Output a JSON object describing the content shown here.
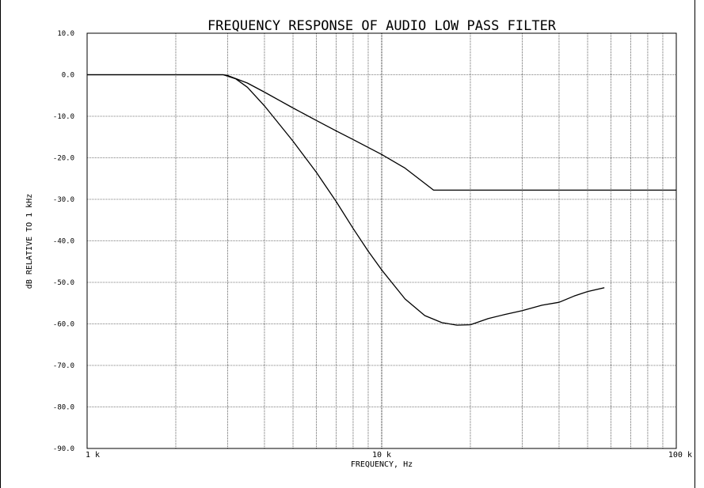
{
  "chart_data": {
    "type": "line",
    "title": "FREQUENCY RESPONSE OF AUDIO LOW PASS FILTER",
    "xlabel": "FREQUENCY, Hz",
    "ylabel": "dB RELATIVE TO 1 kHz",
    "x_scale": "log",
    "xlim": [
      1000,
      100000
    ],
    "ylim": [
      -90,
      10
    ],
    "grid": true,
    "x_ticks": [
      {
        "value": 1000,
        "label": "1 k"
      },
      {
        "value": 10000,
        "label": "10 k"
      },
      {
        "value": 100000,
        "label": "100 k"
      }
    ],
    "y_ticks": [
      {
        "value": 10,
        "label": "10.0"
      },
      {
        "value": 0,
        "label": "0.0"
      },
      {
        "value": -10,
        "label": "-10.0"
      },
      {
        "value": -20,
        "label": "-20.0"
      },
      {
        "value": -30,
        "label": "-30.0"
      },
      {
        "value": -40,
        "label": "-40.0"
      },
      {
        "value": -50,
        "label": "-50.0"
      },
      {
        "value": -60,
        "label": "-60.0"
      },
      {
        "value": -70,
        "label": "-70.0"
      },
      {
        "value": -80,
        "label": "-80.0"
      },
      {
        "value": -90,
        "label": "-90.0"
      }
    ],
    "series": [
      {
        "points": [
          [
            1000,
            0
          ],
          [
            2900,
            0
          ],
          [
            3000,
            -0.2
          ],
          [
            3500,
            -2
          ],
          [
            4000,
            -4.2
          ],
          [
            5000,
            -8
          ],
          [
            6000,
            -11
          ],
          [
            7000,
            -13.5
          ],
          [
            8000,
            -15.6
          ],
          [
            10000,
            -19.2
          ],
          [
            12000,
            -22.5
          ],
          [
            15000,
            -27.8
          ],
          [
            20000,
            -27.8
          ],
          [
            50000,
            -27.8
          ],
          [
            100000,
            -27.8
          ]
        ]
      },
      {
        "points": [
          [
            1000,
            0
          ],
          [
            2900,
            0
          ],
          [
            3200,
            -1
          ],
          [
            3500,
            -3
          ],
          [
            4000,
            -7.5
          ],
          [
            5000,
            -16
          ],
          [
            6000,
            -23.5
          ],
          [
            7000,
            -30.5
          ],
          [
            8000,
            -37
          ],
          [
            9000,
            -42.5
          ],
          [
            10000,
            -47
          ],
          [
            12000,
            -54
          ],
          [
            14000,
            -58
          ],
          [
            16000,
            -59.7
          ],
          [
            18000,
            -60.3
          ],
          [
            20000,
            -60.2
          ],
          [
            23000,
            -58.7
          ],
          [
            26000,
            -57.8
          ],
          [
            30000,
            -56.8
          ],
          [
            35000,
            -55.5
          ],
          [
            40000,
            -54.8
          ],
          [
            45000,
            -53.3
          ],
          [
            50000,
            -52.2
          ],
          [
            57000,
            -51.3
          ]
        ]
      }
    ]
  }
}
